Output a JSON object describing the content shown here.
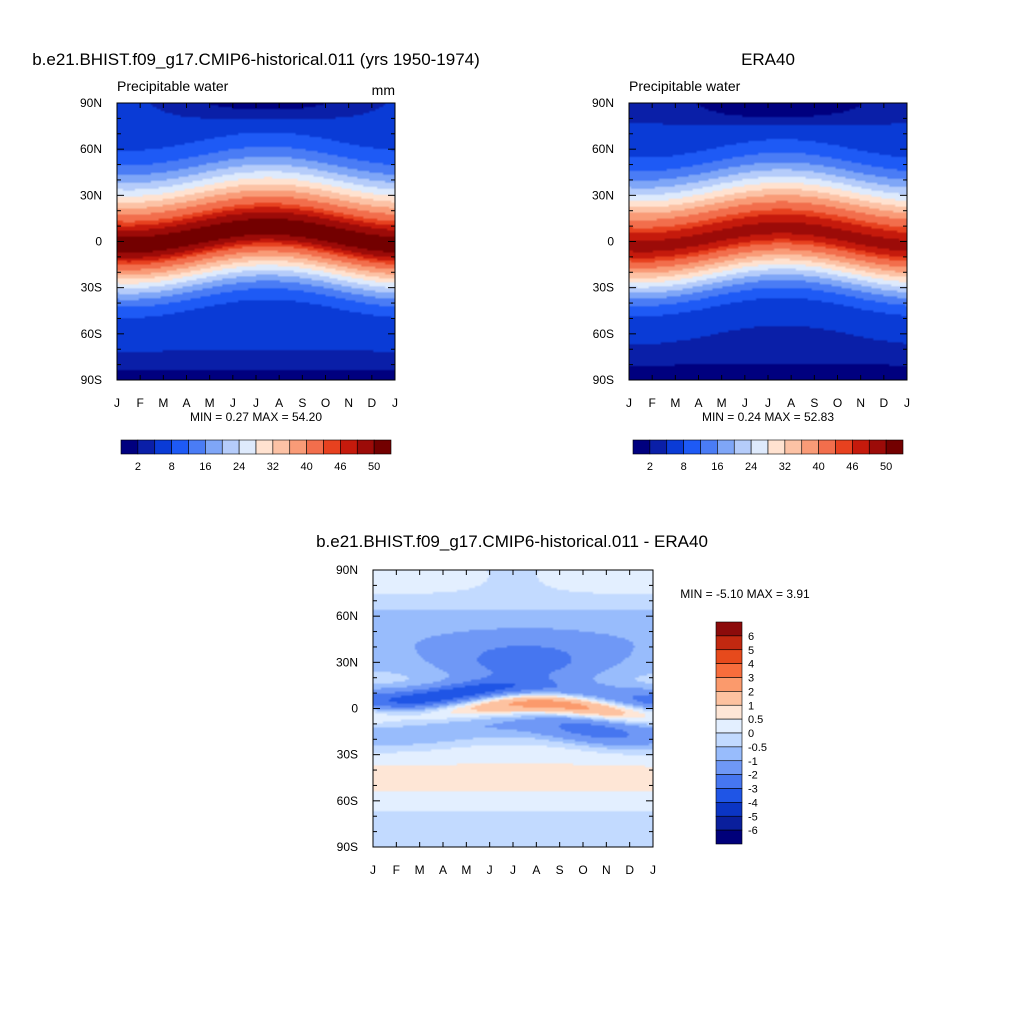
{
  "chart_data": [
    {
      "type": "heatmap",
      "title": "b.e21.BHIST.f09_g17.CMIP6-historical.011 (yrs 1950-1974)",
      "subtitle": "Precipitable water",
      "units": "mm",
      "xlabel": "",
      "ylabel": "",
      "x_ticks": [
        "J",
        "F",
        "M",
        "A",
        "M",
        "J",
        "J",
        "A",
        "S",
        "O",
        "N",
        "D",
        "J"
      ],
      "y_ticks": [
        "90N",
        "60N",
        "30N",
        "0",
        "30S",
        "60S",
        "90S"
      ],
      "ylim": [
        -90,
        90
      ],
      "stats": "MIN =   0.27 MAX =  54.20",
      "min": 0.27,
      "max": 54.2,
      "field": "model",
      "colorbar": {
        "orientation": "horizontal",
        "labels": [
          "2",
          "8",
          "16",
          "24",
          "32",
          "40",
          "46",
          "50"
        ],
        "levels": [
          2,
          4,
          8,
          12,
          16,
          20,
          24,
          28,
          32,
          36,
          40,
          44,
          46,
          48,
          50
        ],
        "colors": [
          "#00007f",
          "#0a1fa8",
          "#0a3bd6",
          "#1e5af5",
          "#4a7cf5",
          "#7fa6f7",
          "#b5ccfa",
          "#deeafc",
          "#ffe2d0",
          "#fcc2a5",
          "#f99b77",
          "#f26e4c",
          "#e7411f",
          "#c51a0c",
          "#9c0b08",
          "#730000"
        ]
      }
    },
    {
      "type": "heatmap",
      "title": "ERA40",
      "subtitle": "Precipitable water",
      "units": "",
      "xlabel": "",
      "ylabel": "",
      "x_ticks": [
        "J",
        "F",
        "M",
        "A",
        "M",
        "J",
        "J",
        "A",
        "S",
        "O",
        "N",
        "D",
        "J"
      ],
      "y_ticks": [
        "90N",
        "60N",
        "30N",
        "0",
        "30S",
        "60S",
        "90S"
      ],
      "ylim": [
        -90,
        90
      ],
      "stats": "MIN =   0.24 MAX =  52.83",
      "min": 0.24,
      "max": 52.83,
      "field": "obs",
      "colorbar": {
        "orientation": "horizontal",
        "labels": [
          "2",
          "8",
          "16",
          "24",
          "32",
          "40",
          "46",
          "50"
        ],
        "levels": [
          2,
          4,
          8,
          12,
          16,
          20,
          24,
          28,
          32,
          36,
          40,
          44,
          46,
          48,
          50
        ],
        "colors": [
          "#00007f",
          "#0a1fa8",
          "#0a3bd6",
          "#1e5af5",
          "#4a7cf5",
          "#7fa6f7",
          "#b5ccfa",
          "#deeafc",
          "#ffe2d0",
          "#fcc2a5",
          "#f99b77",
          "#f26e4c",
          "#e7411f",
          "#c51a0c",
          "#9c0b08",
          "#730000"
        ]
      }
    },
    {
      "type": "heatmap",
      "title": "b.e21.BHIST.f09_g17.CMIP6-historical.011 - ERA40",
      "subtitle": "",
      "units": "",
      "xlabel": "",
      "ylabel": "",
      "x_ticks": [
        "J",
        "F",
        "M",
        "A",
        "M",
        "J",
        "J",
        "A",
        "S",
        "O",
        "N",
        "D",
        "J"
      ],
      "y_ticks": [
        "90N",
        "60N",
        "30N",
        "0",
        "30S",
        "60S",
        "90S"
      ],
      "ylim": [
        -90,
        90
      ],
      "stats": "MIN =  -5.10 MAX =   3.91",
      "min": -5.1,
      "max": 3.91,
      "field": "diff",
      "colorbar": {
        "orientation": "vertical",
        "labels": [
          "6",
          "5",
          "4",
          "3",
          "2",
          "1",
          "0.5",
          "0",
          "-0.5",
          "-1",
          "-2",
          "-3",
          "-4",
          "-5",
          "-6"
        ],
        "levels": [
          6,
          5,
          4,
          3,
          2,
          1,
          0.5,
          0,
          -0.5,
          -1,
          -2,
          -3,
          -4,
          -5,
          -6
        ],
        "colors": [
          "#8c0b0b",
          "#c22810",
          "#e64a1c",
          "#f76d3c",
          "#fb9a6c",
          "#fdc2a0",
          "#fee6d6",
          "#e3efff",
          "#c2daff",
          "#98bcfc",
          "#6f98f6",
          "#4676f0",
          "#1f55e6",
          "#0b35c4",
          "#0a1f9c",
          "#00007a"
        ]
      }
    }
  ]
}
